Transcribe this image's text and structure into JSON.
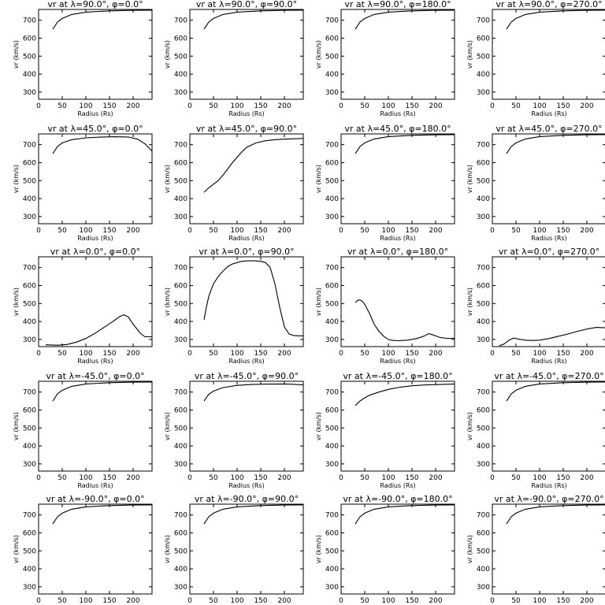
{
  "figure": {
    "background": "#ffffff",
    "line_color": "#000000"
  },
  "chart_data": [
    {
      "type": "line",
      "title": "vr at λ=90.0°, φ=0.0°",
      "xlabel": "Radius (Rs)",
      "ylabel": "vr (km/s)",
      "xlim": [
        0,
        240
      ],
      "ylim": [
        260,
        760
      ],
      "xticks": [
        0,
        50,
        100,
        150,
        200
      ],
      "yticks": [
        300,
        400,
        500,
        600,
        700
      ],
      "x": [
        30,
        40,
        50,
        70,
        100,
        150,
        200,
        240
      ],
      "values": [
        650,
        690,
        710,
        732,
        745,
        752,
        755,
        756
      ]
    },
    {
      "type": "line",
      "title": "vr at λ=90.0°, φ=90.0°",
      "xlabel": "Radius (Rs)",
      "ylabel": "vr (km/s)",
      "xlim": [
        0,
        240
      ],
      "ylim": [
        260,
        760
      ],
      "xticks": [
        0,
        50,
        100,
        150,
        200
      ],
      "yticks": [
        300,
        400,
        500,
        600,
        700
      ],
      "x": [
        30,
        40,
        50,
        70,
        100,
        150,
        200,
        240
      ],
      "values": [
        650,
        690,
        710,
        732,
        745,
        752,
        755,
        756
      ]
    },
    {
      "type": "line",
      "title": "vr at λ=90.0°, φ=180.0°",
      "xlabel": "Radius (Rs)",
      "ylabel": "vr (km/s)",
      "xlim": [
        0,
        240
      ],
      "ylim": [
        260,
        760
      ],
      "xticks": [
        0,
        50,
        100,
        150,
        200
      ],
      "yticks": [
        300,
        400,
        500,
        600,
        700
      ],
      "x": [
        30,
        40,
        50,
        70,
        100,
        150,
        200,
        240
      ],
      "values": [
        650,
        690,
        710,
        732,
        745,
        752,
        755,
        756
      ]
    },
    {
      "type": "line",
      "title": "vr at λ=90.0°, φ=270.0°",
      "xlabel": "Radius (Rs)",
      "ylabel": "vr (km/s)",
      "xlim": [
        0,
        240
      ],
      "ylim": [
        260,
        760
      ],
      "xticks": [
        0,
        50,
        100,
        150,
        200
      ],
      "yticks": [
        300,
        400,
        500,
        600,
        700
      ],
      "x": [
        30,
        40,
        50,
        70,
        100,
        150,
        200,
        240
      ],
      "values": [
        650,
        690,
        710,
        732,
        745,
        752,
        755,
        756
      ]
    },
    {
      "type": "line",
      "title": "vr at λ=45.0°, φ=0.0°",
      "xlabel": "Radius (Rs)",
      "ylabel": "vr (km/s)",
      "xlim": [
        0,
        240
      ],
      "ylim": [
        260,
        760
      ],
      "xticks": [
        0,
        50,
        100,
        150,
        200
      ],
      "yticks": [
        300,
        400,
        500,
        600,
        700
      ],
      "x": [
        30,
        40,
        50,
        70,
        100,
        130,
        160,
        190,
        210,
        225,
        240
      ],
      "values": [
        650,
        690,
        710,
        728,
        738,
        742,
        744,
        743,
        730,
        705,
        665
      ]
    },
    {
      "type": "line",
      "title": "vr at λ=45.0°, φ=90.0°",
      "xlabel": "Radius (Rs)",
      "ylabel": "vr (km/s)",
      "xlim": [
        0,
        240
      ],
      "ylim": [
        260,
        760
      ],
      "xticks": [
        0,
        50,
        100,
        150,
        200
      ],
      "yticks": [
        300,
        400,
        500,
        600,
        700
      ],
      "x": [
        30,
        40,
        50,
        60,
        70,
        80,
        90,
        100,
        110,
        120,
        140,
        160,
        180,
        200,
        220,
        240
      ],
      "values": [
        435,
        460,
        480,
        500,
        530,
        565,
        600,
        630,
        660,
        685,
        710,
        722,
        728,
        731,
        733,
        735
      ]
    },
    {
      "type": "line",
      "title": "vr at λ=45.0°, φ=180.0°",
      "xlabel": "Radius (Rs)",
      "ylabel": "vr (km/s)",
      "xlim": [
        0,
        240
      ],
      "ylim": [
        260,
        760
      ],
      "xticks": [
        0,
        50,
        100,
        150,
        200
      ],
      "yticks": [
        300,
        400,
        500,
        600,
        700
      ],
      "x": [
        30,
        40,
        50,
        70,
        100,
        150,
        200,
        240
      ],
      "values": [
        650,
        690,
        710,
        732,
        745,
        752,
        755,
        756
      ]
    },
    {
      "type": "line",
      "title": "vr at λ=45.0°, φ=270.0°",
      "xlabel": "Radius (Rs)",
      "ylabel": "vr (km/s)",
      "xlim": [
        0,
        240
      ],
      "ylim": [
        260,
        760
      ],
      "xticks": [
        0,
        50,
        100,
        150,
        200
      ],
      "yticks": [
        300,
        400,
        500,
        600,
        700
      ],
      "x": [
        30,
        40,
        50,
        70,
        100,
        150,
        200,
        240
      ],
      "values": [
        650,
        690,
        710,
        732,
        745,
        752,
        755,
        756
      ]
    },
    {
      "type": "line",
      "title": "vr at λ=0.0°, φ=0.0°",
      "xlabel": "Radius (Rs)",
      "ylabel": "vr (km/s)",
      "xlim": [
        0,
        240
      ],
      "ylim": [
        260,
        760
      ],
      "xticks": [
        0,
        50,
        100,
        150,
        200
      ],
      "yticks": [
        300,
        400,
        500,
        600,
        700
      ],
      "x": [
        15,
        40,
        60,
        80,
        100,
        120,
        140,
        160,
        170,
        180,
        190,
        200,
        215,
        225,
        240
      ],
      "values": [
        270,
        268,
        272,
        285,
        305,
        335,
        370,
        405,
        425,
        437,
        425,
        385,
        335,
        315,
        315
      ]
    },
    {
      "type": "line",
      "title": "vr at λ=0.0°, φ=90.0°",
      "xlabel": "Radius (Rs)",
      "ylabel": "vr (km/s)",
      "xlim": [
        0,
        240
      ],
      "ylim": [
        260,
        760
      ],
      "xticks": [
        0,
        50,
        100,
        150,
        200
      ],
      "yticks": [
        300,
        400,
        500,
        600,
        700
      ],
      "x": [
        30,
        35,
        40,
        50,
        60,
        70,
        80,
        90,
        100,
        110,
        120,
        130,
        140,
        150,
        160,
        170,
        180,
        190,
        200,
        210,
        220,
        230,
        240
      ],
      "values": [
        410,
        480,
        540,
        610,
        650,
        680,
        705,
        720,
        728,
        735,
        737,
        738,
        737,
        735,
        728,
        700,
        610,
        480,
        370,
        330,
        322,
        320,
        320
      ]
    },
    {
      "type": "line",
      "title": "vr at λ=0.0°, φ=180.0°",
      "xlabel": "Radius (Rs)",
      "ylabel": "vr (km/s)",
      "xlim": [
        0,
        240
      ],
      "ylim": [
        260,
        760
      ],
      "xticks": [
        0,
        50,
        100,
        150,
        200
      ],
      "yticks": [
        300,
        400,
        500,
        600,
        700
      ],
      "x": [
        30,
        35,
        40,
        45,
        50,
        60,
        70,
        80,
        90,
        100,
        110,
        120,
        140,
        160,
        175,
        185,
        195,
        210,
        225,
        240
      ],
      "values": [
        505,
        518,
        520,
        512,
        495,
        445,
        385,
        345,
        318,
        300,
        294,
        293,
        296,
        305,
        318,
        332,
        325,
        310,
        306,
        306
      ]
    },
    {
      "type": "line",
      "title": "vr at λ=0.0°, φ=270.0°",
      "xlabel": "Radius (Rs)",
      "ylabel": "vr (km/s)",
      "xlim": [
        0,
        240
      ],
      "ylim": [
        260,
        760
      ],
      "xticks": [
        0,
        50,
        100,
        150,
        200
      ],
      "yticks": [
        300,
        400,
        500,
        600,
        700
      ],
      "x": [
        15,
        25,
        35,
        45,
        55,
        70,
        85,
        100,
        120,
        140,
        160,
        180,
        200,
        220,
        240
      ],
      "values": [
        265,
        275,
        295,
        308,
        302,
        296,
        294,
        296,
        305,
        318,
        330,
        345,
        358,
        367,
        365
      ]
    },
    {
      "type": "line",
      "title": "vr at λ=-45.0°, φ=0.0°",
      "xlabel": "Radius (Rs)",
      "ylabel": "vr (km/s)",
      "xlim": [
        0,
        240
      ],
      "ylim": [
        260,
        760
      ],
      "xticks": [
        0,
        50,
        100,
        150,
        200
      ],
      "yticks": [
        300,
        400,
        500,
        600,
        700
      ],
      "x": [
        30,
        40,
        50,
        70,
        100,
        150,
        200,
        240
      ],
      "values": [
        650,
        690,
        710,
        732,
        745,
        752,
        755,
        756
      ]
    },
    {
      "type": "line",
      "title": "vr at λ=-45.0°, φ=90.0°",
      "xlabel": "Radius (Rs)",
      "ylabel": "vr (km/s)",
      "xlim": [
        0,
        240
      ],
      "ylim": [
        260,
        760
      ],
      "xticks": [
        0,
        50,
        100,
        150,
        200
      ],
      "yticks": [
        300,
        400,
        500,
        600,
        700
      ],
      "x": [
        30,
        40,
        50,
        70,
        100,
        130,
        160,
        190,
        210,
        225,
        240
      ],
      "values": [
        650,
        688,
        705,
        725,
        737,
        742,
        744,
        745,
        744,
        742,
        740
      ]
    },
    {
      "type": "line",
      "title": "vr at λ=-45.0°, φ=180.0°",
      "xlabel": "Radius (Rs)",
      "ylabel": "vr (km/s)",
      "xlim": [
        0,
        240
      ],
      "ylim": [
        260,
        760
      ],
      "xticks": [
        0,
        50,
        100,
        150,
        200
      ],
      "yticks": [
        300,
        400,
        500,
        600,
        700
      ],
      "x": [
        30,
        40,
        50,
        60,
        80,
        100,
        120,
        150,
        180,
        210,
        240
      ],
      "values": [
        625,
        650,
        668,
        682,
        700,
        715,
        725,
        735,
        740,
        742,
        745
      ]
    },
    {
      "type": "line",
      "title": "vr at λ=-45.0°, φ=270.0°",
      "xlabel": "Radius (Rs)",
      "ylabel": "vr (km/s)",
      "xlim": [
        0,
        240
      ],
      "ylim": [
        260,
        760
      ],
      "xticks": [
        0,
        50,
        100,
        150,
        200
      ],
      "yticks": [
        300,
        400,
        500,
        600,
        700
      ],
      "x": [
        30,
        40,
        50,
        70,
        100,
        150,
        200,
        240
      ],
      "values": [
        650,
        690,
        710,
        732,
        745,
        752,
        755,
        756
      ]
    },
    {
      "type": "line",
      "title": "vr at λ=-90.0°, φ=0.0°",
      "xlabel": "Radius (Rs)",
      "ylabel": "vr (km/s)",
      "xlim": [
        0,
        240
      ],
      "ylim": [
        260,
        760
      ],
      "xticks": [
        0,
        50,
        100,
        150,
        200
      ],
      "yticks": [
        300,
        400,
        500,
        600,
        700
      ],
      "x": [
        30,
        40,
        50,
        70,
        100,
        150,
        200,
        240
      ],
      "values": [
        650,
        690,
        710,
        732,
        745,
        752,
        755,
        756
      ]
    },
    {
      "type": "line",
      "title": "vr at λ=-90.0°, φ=90.0°",
      "xlabel": "Radius (Rs)",
      "ylabel": "vr (km/s)",
      "xlim": [
        0,
        240
      ],
      "ylim": [
        260,
        760
      ],
      "xticks": [
        0,
        50,
        100,
        150,
        200
      ],
      "yticks": [
        300,
        400,
        500,
        600,
        700
      ],
      "x": [
        30,
        40,
        50,
        70,
        100,
        150,
        200,
        240
      ],
      "values": [
        650,
        690,
        710,
        732,
        745,
        752,
        755,
        756
      ]
    },
    {
      "type": "line",
      "title": "vr at λ=-90.0°, φ=180.0°",
      "xlabel": "Radius (Rs)",
      "ylabel": "vr (km/s)",
      "xlim": [
        0,
        240
      ],
      "ylim": [
        260,
        760
      ],
      "xticks": [
        0,
        50,
        100,
        150,
        200
      ],
      "yticks": [
        300,
        400,
        500,
        600,
        700
      ],
      "x": [
        30,
        40,
        50,
        70,
        100,
        150,
        200,
        240
      ],
      "values": [
        650,
        690,
        710,
        732,
        745,
        752,
        755,
        756
      ]
    },
    {
      "type": "line",
      "title": "vr at λ=-90.0°, φ=270.0°",
      "xlabel": "Radius (Rs)",
      "ylabel": "vr (km/s)",
      "xlim": [
        0,
        240
      ],
      "ylim": [
        260,
        760
      ],
      "xticks": [
        0,
        50,
        100,
        150,
        200
      ],
      "yticks": [
        300,
        400,
        500,
        600,
        700
      ],
      "x": [
        30,
        40,
        50,
        70,
        100,
        150,
        200,
        240
      ],
      "values": [
        650,
        690,
        710,
        732,
        745,
        752,
        755,
        756
      ]
    }
  ]
}
